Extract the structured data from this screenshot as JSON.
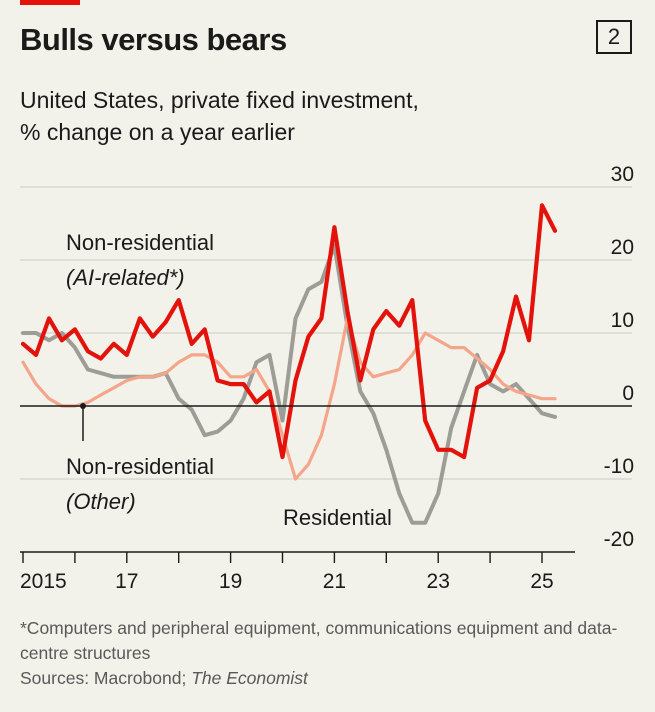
{
  "title": "Bulls versus bears",
  "chart_number": "2",
  "subtitle_line1": "United States, private fixed investment,",
  "subtitle_line2": "% change on a year earlier",
  "footnote": "*Computers and peripheral equipment, communications equipment and data-centre structures",
  "sources_prefix": "Sources: Macrobond; ",
  "sources_italic": "The Economist",
  "colors": {
    "ai_related": "#e3120b",
    "other": "#f4a58a",
    "residential": "#9d9d97",
    "background": "#f2f2ea"
  },
  "chart_data": {
    "type": "line",
    "title": "Bulls versus bears",
    "subtitle": "United States, private fixed investment, % change on a year earlier",
    "x_start_year": 2015,
    "x_ticks": [
      {
        "year": 2015,
        "label": "2015"
      },
      {
        "year": 2017,
        "label": "17"
      },
      {
        "year": 2019,
        "label": "19"
      },
      {
        "year": 2021,
        "label": "21"
      },
      {
        "year": 2023,
        "label": "23"
      },
      {
        "year": 2025,
        "label": "25"
      }
    ],
    "xlim": [
      2015,
      2026.6
    ],
    "ylim": [
      -20,
      30
    ],
    "y_ticks": [
      30,
      20,
      10,
      0,
      -10,
      -20
    ],
    "y_tick_labels": [
      "30",
      "20",
      "10",
      "0",
      "-10",
      "-20"
    ],
    "y_axis_side": "right",
    "grid": true,
    "series": [
      {
        "name": "Residential",
        "label_lines": [
          "Residential"
        ],
        "color": "#9d9d97",
        "x": [
          2015.0,
          2015.25,
          2015.5,
          2015.75,
          2016.0,
          2016.25,
          2016.5,
          2016.75,
          2017.0,
          2017.25,
          2017.5,
          2017.75,
          2018.0,
          2018.25,
          2018.5,
          2018.75,
          2019.0,
          2019.25,
          2019.5,
          2019.75,
          2020.0,
          2020.25,
          2020.5,
          2020.75,
          2021.0,
          2021.25,
          2021.5,
          2021.75,
          2022.0,
          2022.25,
          2022.5,
          2022.75,
          2023.0,
          2023.25,
          2023.5,
          2023.75,
          2024.0,
          2024.25,
          2024.5,
          2024.75,
          2025.0,
          2025.25
        ],
        "values": [
          10,
          10,
          9,
          10,
          8,
          5,
          4.5,
          4,
          4,
          4,
          4,
          4.5,
          1,
          -0.5,
          -4,
          -3.5,
          -2,
          1,
          6,
          7,
          -2,
          12,
          16,
          17,
          22,
          11,
          2,
          -1,
          -6,
          -12,
          -16,
          -16,
          -12,
          -3,
          2,
          7,
          3,
          2,
          3,
          1,
          -1,
          -1.5
        ]
      },
      {
        "name": "Non-residential (Other)",
        "label_lines": [
          "Non-residential",
          "(Other)"
        ],
        "color": "#f4a58a",
        "x": [
          2015.0,
          2015.25,
          2015.5,
          2015.75,
          2016.0,
          2016.25,
          2016.5,
          2016.75,
          2017.0,
          2017.25,
          2017.5,
          2017.75,
          2018.0,
          2018.25,
          2018.5,
          2018.75,
          2019.0,
          2019.25,
          2019.5,
          2019.75,
          2020.0,
          2020.25,
          2020.5,
          2020.75,
          2021.0,
          2021.25,
          2021.5,
          2021.75,
          2022.0,
          2022.25,
          2022.5,
          2022.75,
          2023.0,
          2023.25,
          2023.5,
          2023.75,
          2024.0,
          2024.25,
          2024.5,
          2024.75,
          2025.0,
          2025.25
        ],
        "values": [
          6,
          3,
          1,
          0,
          0,
          0.5,
          1.5,
          2.5,
          3.5,
          4,
          4,
          4.5,
          6,
          7,
          7,
          6,
          4,
          4,
          5,
          2,
          -4,
          -10,
          -8,
          -4,
          3,
          12,
          6,
          4,
          4.5,
          5,
          7,
          10,
          9,
          8,
          8,
          6.5,
          5,
          3,
          2,
          1.5,
          1,
          1
        ]
      },
      {
        "name": "Non-residential (AI-related*)",
        "label_lines": [
          "Non-residential",
          "(AI-related*)"
        ],
        "color": "#e3120b",
        "x": [
          2015.0,
          2015.25,
          2015.5,
          2015.75,
          2016.0,
          2016.25,
          2016.5,
          2016.75,
          2017.0,
          2017.25,
          2017.5,
          2017.75,
          2018.0,
          2018.25,
          2018.5,
          2018.75,
          2019.0,
          2019.25,
          2019.5,
          2019.75,
          2020.0,
          2020.25,
          2020.5,
          2020.75,
          2021.0,
          2021.25,
          2021.5,
          2021.75,
          2022.0,
          2022.25,
          2022.5,
          2022.75,
          2023.0,
          2023.25,
          2023.5,
          2023.75,
          2024.0,
          2024.25,
          2024.5,
          2024.75,
          2025.0,
          2025.25
        ],
        "values": [
          8.5,
          7,
          12,
          9,
          10.5,
          7.5,
          6.5,
          8.5,
          7,
          12,
          9.5,
          11.5,
          14.5,
          8.5,
          10.5,
          3.5,
          3,
          3,
          0.5,
          2,
          -7,
          3.5,
          9.5,
          12,
          24.5,
          13,
          3.5,
          10.5,
          13,
          11,
          14.5,
          -2,
          -6,
          -6,
          -7,
          2.5,
          3.5,
          7.5,
          15,
          9,
          27.5,
          24
        ]
      }
    ]
  }
}
